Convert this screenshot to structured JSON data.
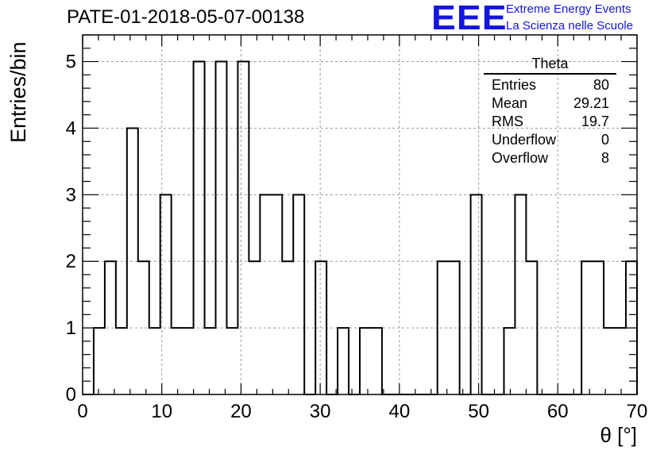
{
  "header": {
    "title": "PATE-01-2018-05-07-00138",
    "logo_text": "EEE",
    "org_line1": "Extreme Energy Events",
    "org_line2": "La Scienza nelle Scuole",
    "logo_color": "#1515e0"
  },
  "stats_box": {
    "name": "Theta",
    "rows": [
      {
        "label": "Entries",
        "value": "80"
      },
      {
        "label": "Mean",
        "value": "29.21"
      },
      {
        "label": "RMS",
        "value": "19.7"
      },
      {
        "label": "Underflow",
        "value": "0"
      },
      {
        "label": "Overflow",
        "value": "8"
      }
    ]
  },
  "chart_data": {
    "type": "bar",
    "histogram": true,
    "xlabel": "θ [°]",
    "ylabel": "Entries/bin",
    "xlim": [
      0,
      70
    ],
    "ylim": [
      0,
      5.4
    ],
    "grid": true,
    "bin_width": 1.4,
    "xticks": [
      0,
      10,
      20,
      30,
      40,
      50,
      60,
      70
    ],
    "yticks": [
      0,
      1,
      2,
      3,
      4,
      5
    ],
    "bin_edges": [
      0,
      1.4,
      2.8,
      4.2,
      5.6,
      7,
      8.4,
      9.8,
      11.2,
      12.6,
      14,
      15.4,
      16.8,
      18.2,
      19.6,
      21,
      22.4,
      23.8,
      25.2,
      26.6,
      28,
      29.4,
      30.8,
      32.2,
      33.6,
      35,
      36.4,
      37.8,
      39.2,
      40.6,
      42,
      43.4,
      44.8,
      46.2,
      47.6,
      49,
      50.4,
      51.8,
      53.2,
      54.6,
      56,
      57.4,
      58.8,
      60.2,
      61.6,
      63,
      64.4,
      65.8,
      67.2,
      68.6,
      70
    ],
    "values": [
      0,
      1,
      2,
      1,
      4,
      2,
      1,
      3,
      1,
      1,
      5,
      1,
      5,
      1,
      5,
      2,
      3,
      3,
      2,
      3,
      0,
      2,
      0,
      1,
      0,
      1,
      1,
      0,
      0,
      0,
      0,
      0,
      2,
      2,
      0,
      3,
      0,
      0,
      1,
      3,
      2,
      0,
      0,
      0,
      0,
      2,
      2,
      1,
      1,
      2
    ],
    "line_color": "#000000",
    "grid_color": "#9a9a9a"
  }
}
